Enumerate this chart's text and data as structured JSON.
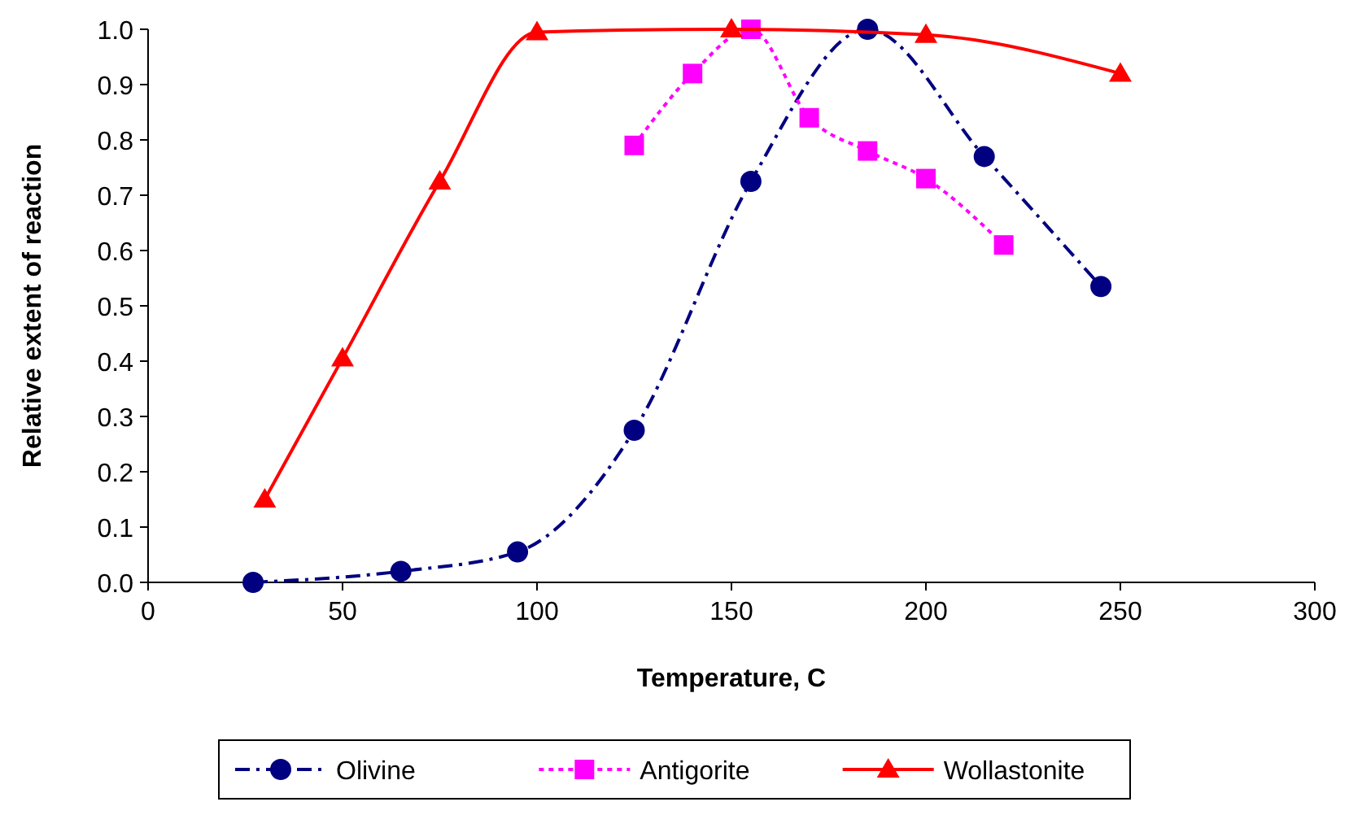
{
  "chart_data": {
    "type": "line",
    "xlabel": "Temperature, C",
    "ylabel": "Relative extent of reaction",
    "xlim": [
      0,
      300
    ],
    "xticks": [
      0,
      50,
      100,
      150,
      200,
      250,
      300
    ],
    "ylim": [
      0,
      1
    ],
    "yticks": [
      {
        "value": 0,
        "label": "0.0"
      },
      {
        "value": 0.1,
        "label": "0.1"
      },
      {
        "value": 0.2,
        "label": "0.2"
      },
      {
        "value": 0.3,
        "label": "0.3"
      },
      {
        "value": 0.4,
        "label": "0.4"
      },
      {
        "value": 0.5,
        "label": "0.5"
      },
      {
        "value": 0.6,
        "label": "0.6"
      },
      {
        "value": 0.7,
        "label": "0.7"
      },
      {
        "value": 0.8,
        "label": "0.8"
      },
      {
        "value": 0.9,
        "label": "0.9"
      },
      {
        "value": 1,
        "label": "1.0"
      }
    ],
    "legend": "bottom",
    "series": [
      {
        "name": "Olivine",
        "color": "#000080",
        "marker": "circle",
        "line_style": "dashed",
        "x": [
          27,
          65,
          95,
          125,
          155,
          185,
          215,
          245
        ],
        "values": [
          0,
          0.02,
          0.055,
          0.275,
          0.725,
          1.0,
          0.77,
          0.535
        ]
      },
      {
        "name": "Antigorite",
        "color": "#ff00ff",
        "marker": "square",
        "line_style": "dotted",
        "x": [
          125,
          140,
          155,
          170,
          185,
          200,
          220
        ],
        "values": [
          0.79,
          0.92,
          1.0,
          0.84,
          0.78,
          0.73,
          0.61
        ]
      },
      {
        "name": "Wollastonite",
        "color": "#ff0000",
        "marker": "triangle",
        "line_style": "solid",
        "x": [
          30,
          50,
          75,
          100,
          150,
          200,
          250
        ],
        "values": [
          0.15,
          0.405,
          0.725,
          0.995,
          1.0,
          0.99,
          0.92
        ]
      }
    ]
  }
}
